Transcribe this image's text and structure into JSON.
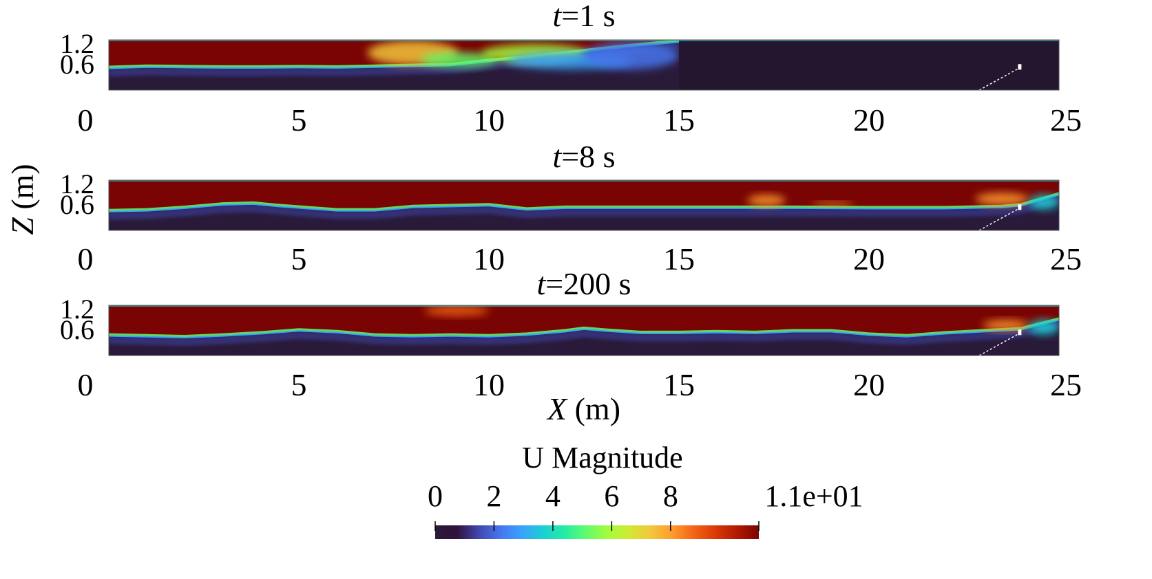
{
  "chart_data": {
    "type": "heatmap",
    "panels": [
      {
        "title_var": "t",
        "title_rest": "=1 s",
        "xlim": [
          0,
          25
        ],
        "ylim": [
          0,
          1.2
        ],
        "xticks": [
          "0",
          "5",
          "10",
          "15",
          "20",
          "25"
        ],
        "yticks": [
          "1.2",
          "0.6"
        ],
        "interface": [
          [
            0,
            0.55
          ],
          [
            1,
            0.58
          ],
          [
            2,
            0.57
          ],
          [
            3,
            0.56
          ],
          [
            4,
            0.56
          ],
          [
            5,
            0.57
          ],
          [
            6,
            0.56
          ],
          [
            7,
            0.58
          ],
          [
            8,
            0.6
          ],
          [
            9,
            0.62
          ],
          [
            10,
            0.72
          ],
          [
            11,
            0.8
          ],
          [
            12,
            0.9
          ],
          [
            13,
            1.0
          ],
          [
            14,
            1.1
          ],
          [
            15,
            1.18
          ]
        ],
        "patches": [
          {
            "x": [
              6.8,
              9.2
            ],
            "z": [
              0.6,
              1.18
            ],
            "v": 7
          },
          {
            "x": [
              8.2,
              10.2
            ],
            "z": [
              0.55,
              0.9
            ],
            "v": 5
          },
          {
            "x": [
              9.8,
              12.6
            ],
            "z": [
              0.65,
              1.1
            ],
            "v": 6
          },
          {
            "x": [
              10.5,
              13.8
            ],
            "z": [
              0.5,
              0.9
            ],
            "v": 3
          },
          {
            "x": [
              12.5,
              15.0
            ],
            "z": [
              0.5,
              1.15
            ],
            "v": 2
          }
        ],
        "quiescent": {
          "from": 15,
          "to": 25,
          "v": 0
        }
      },
      {
        "title_var": "t",
        "title_rest": "=8 s",
        "xlim": [
          0,
          25
        ],
        "ylim": [
          0,
          1.2
        ],
        "xticks": [
          "0",
          "5",
          "10",
          "15",
          "20",
          "25"
        ],
        "yticks": [
          "1.2",
          "0.6"
        ],
        "interface": [
          [
            0,
            0.48
          ],
          [
            1,
            0.5
          ],
          [
            2,
            0.56
          ],
          [
            3,
            0.64
          ],
          [
            3.8,
            0.66
          ],
          [
            4.5,
            0.6
          ],
          [
            6,
            0.5
          ],
          [
            7,
            0.5
          ],
          [
            8,
            0.58
          ],
          [
            9,
            0.6
          ],
          [
            10,
            0.62
          ],
          [
            11,
            0.52
          ],
          [
            12,
            0.56
          ],
          [
            14,
            0.56
          ],
          [
            16,
            0.56
          ],
          [
            18,
            0.56
          ],
          [
            20,
            0.55
          ],
          [
            22,
            0.55
          ],
          [
            23.5,
            0.58
          ],
          [
            24,
            0.62
          ],
          [
            25,
            0.88
          ]
        ],
        "patches": [
          {
            "x": [
              16.8,
              17.8
            ],
            "z": [
              0.58,
              0.85
            ],
            "v": 8
          },
          {
            "x": [
              18.5,
              19.6
            ],
            "z": [
              0.58,
              0.68
            ],
            "v": 8
          },
          {
            "x": [
              22.8,
              24.2
            ],
            "z": [
              0.6,
              0.9
            ],
            "v": 8
          },
          {
            "x": [
              24.2,
              25
            ],
            "z": [
              0.5,
              0.85
            ],
            "v": 4
          }
        ],
        "quiescent": null
      },
      {
        "title_var": "t",
        "title_rest": "=200 s",
        "xlim": [
          0,
          25
        ],
        "ylim": [
          0,
          1.2
        ],
        "xticks": [
          "0",
          "5",
          "10",
          "15",
          "20",
          "25"
        ],
        "yticks": [
          "1.2",
          "0.6"
        ],
        "interface": [
          [
            0,
            0.5
          ],
          [
            1,
            0.48
          ],
          [
            2,
            0.46
          ],
          [
            3,
            0.5
          ],
          [
            4,
            0.55
          ],
          [
            5,
            0.62
          ],
          [
            6,
            0.58
          ],
          [
            7,
            0.5
          ],
          [
            8,
            0.48
          ],
          [
            9,
            0.5
          ],
          [
            10,
            0.48
          ],
          [
            11,
            0.52
          ],
          [
            12,
            0.6
          ],
          [
            12.5,
            0.66
          ],
          [
            13,
            0.62
          ],
          [
            14,
            0.56
          ],
          [
            15,
            0.56
          ],
          [
            16,
            0.58
          ],
          [
            17,
            0.56
          ],
          [
            18,
            0.6
          ],
          [
            19,
            0.6
          ],
          [
            20,
            0.52
          ],
          [
            21,
            0.48
          ],
          [
            22,
            0.55
          ],
          [
            23,
            0.6
          ],
          [
            24,
            0.65
          ],
          [
            25,
            0.88
          ]
        ],
        "patches": [
          {
            "x": [
              8.3,
              10.0
            ],
            "z": [
              0.95,
              1.2
            ],
            "v": 9
          },
          {
            "x": [
              23.0,
              24.2
            ],
            "z": [
              0.6,
              0.85
            ],
            "v": 8
          },
          {
            "x": [
              24.2,
              25
            ],
            "z": [
              0.5,
              0.85
            ],
            "v": 4
          }
        ],
        "quiescent": null
      }
    ],
    "xlabel_var": "X",
    "xlabel_unit": " (m)",
    "ylabel_var": "Z",
    "ylabel_unit": " (m)",
    "colorbar": {
      "title": "U Magnitude",
      "range": [
        0,
        11
      ],
      "tick_values": [
        0,
        2,
        4,
        6,
        8,
        11
      ],
      "tick_labels": [
        "0",
        "2",
        "4",
        "6",
        "8",
        "1.1e+01"
      ],
      "colormap": "turbo",
      "colors": [
        "#2a1a3a",
        "#30123b",
        "#4145ab",
        "#4675ed",
        "#39a2fc",
        "#1bcfd4",
        "#24eca6",
        "#61fc6c",
        "#a4fc3b",
        "#d1e834",
        "#f3c63a",
        "#fe9b2d",
        "#f36315",
        "#d93806",
        "#b11901",
        "#7a0403"
      ]
    },
    "colors": {
      "air": "#7a0403",
      "deep": "#2a1a3a",
      "interface_band": "#39a2fc"
    }
  }
}
